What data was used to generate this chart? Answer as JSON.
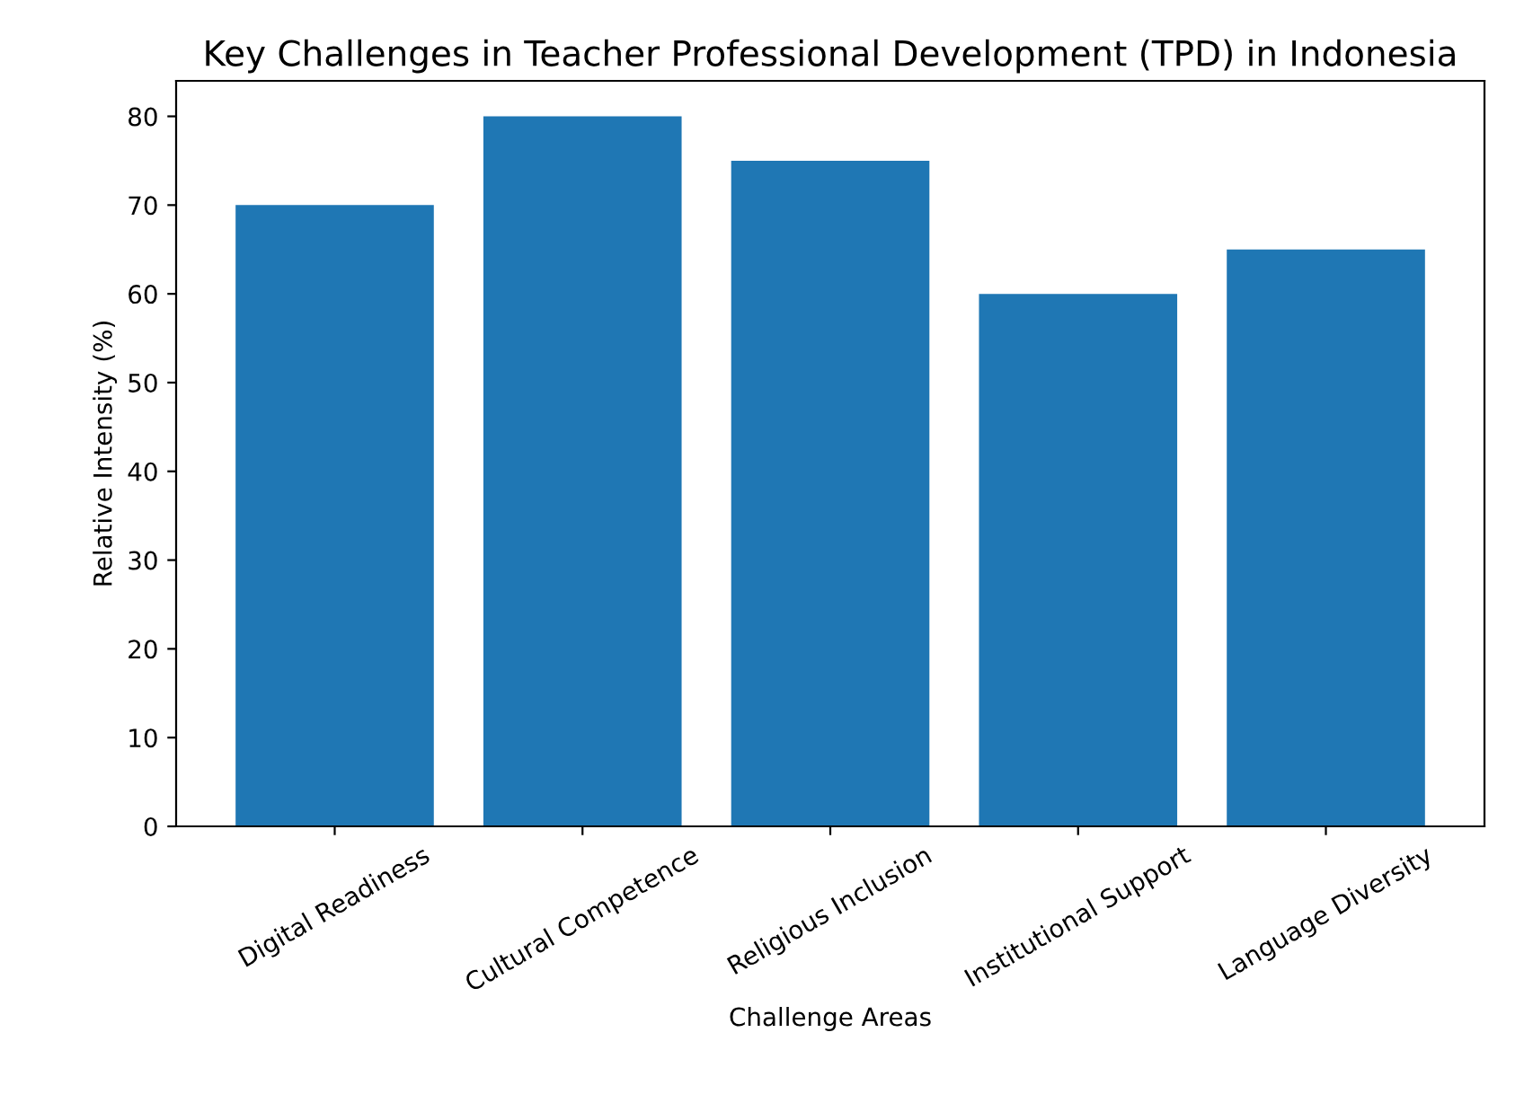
{
  "chart_data": {
    "type": "bar",
    "title": "Key Challenges in Teacher Professional Development (TPD) in Indonesia",
    "xlabel": "Challenge Areas",
    "ylabel": "Relative Intensity (%)",
    "categories": [
      "Digital Readiness",
      "Cultural Competence",
      "Religious Inclusion",
      "Institutional Support",
      "Language Diversity"
    ],
    "values": [
      70,
      80,
      75,
      60,
      65
    ],
    "color": "#1f77b4",
    "ylim": [
      0,
      84
    ],
    "yticks": [
      0,
      10,
      20,
      30,
      40,
      50,
      60,
      70,
      80
    ],
    "grid": false
  }
}
